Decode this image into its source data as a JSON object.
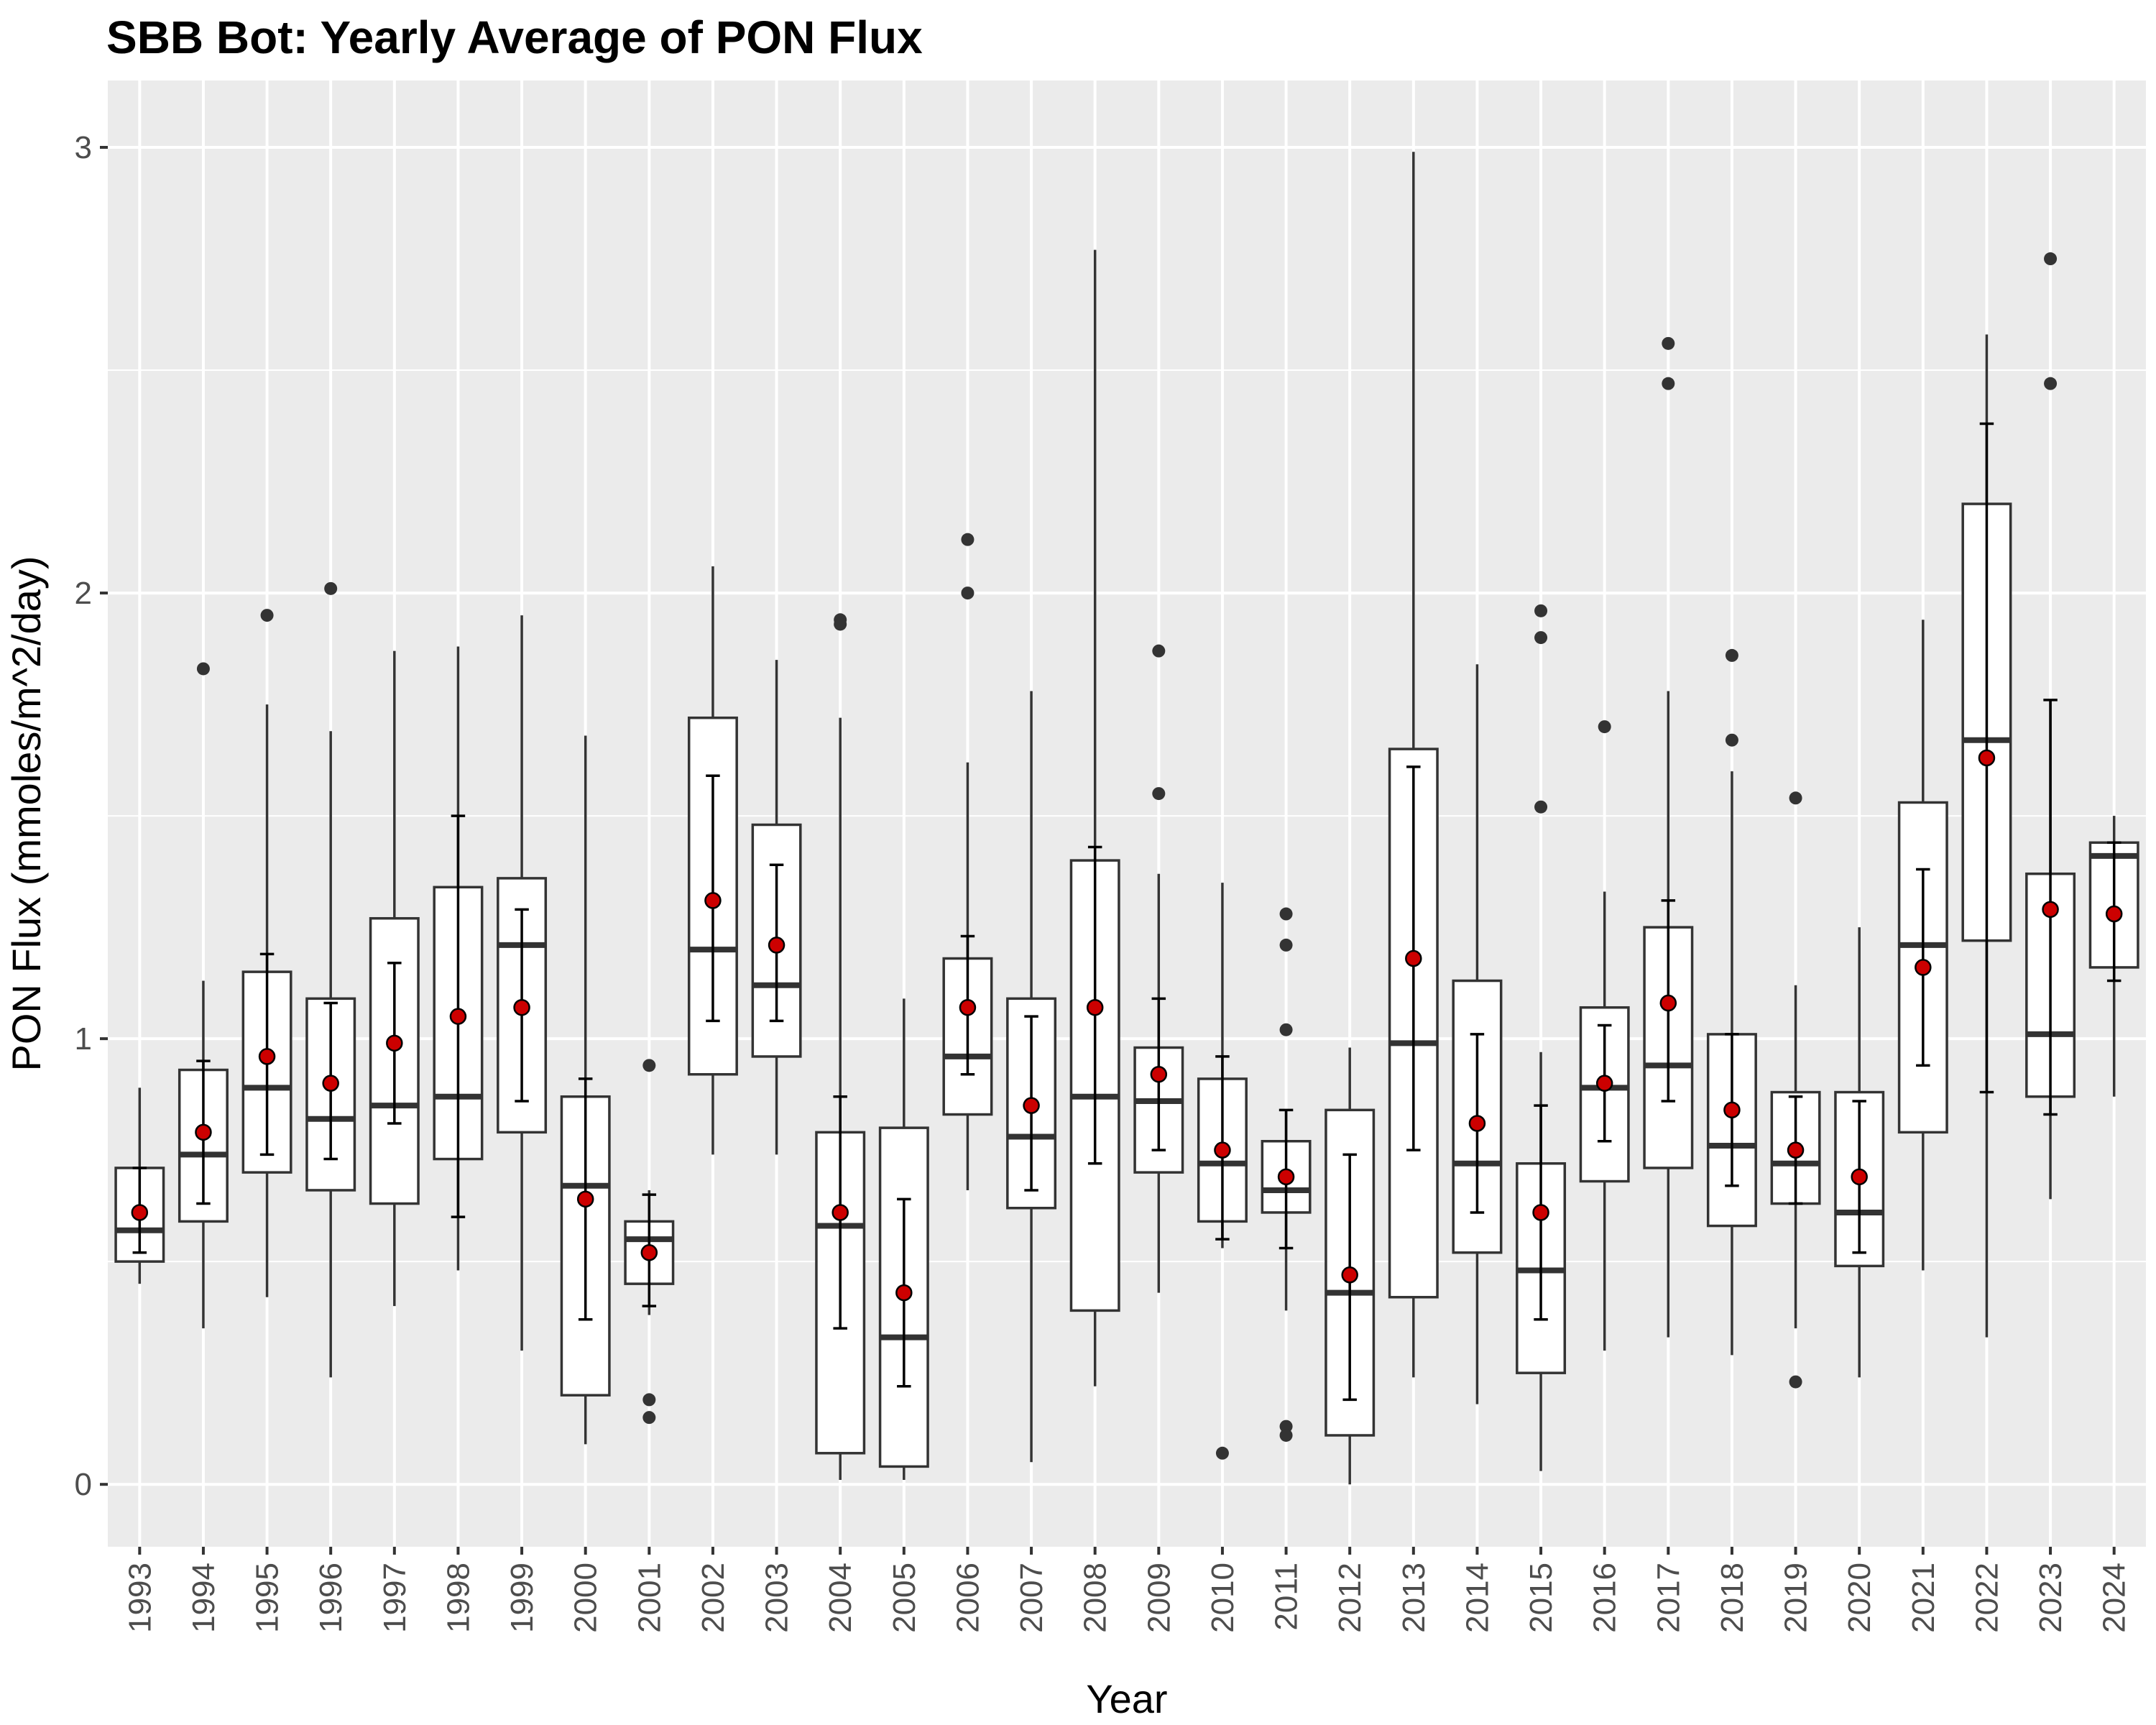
{
  "chart_data": {
    "type": "boxplot",
    "title": "SBB Bot: Yearly Average of PON Flux",
    "xlabel": "Year",
    "ylabel": "PON Flux (mmoles/m^2/day)",
    "ylim": [
      -0.14,
      3.15
    ],
    "yticks": [
      0,
      1,
      2,
      3
    ],
    "grid": true,
    "colors": {
      "panel": "#ebebeb",
      "grid": "#ffffff",
      "box_fill": "#ffffff",
      "box_line": "#333333",
      "mean_point": "#cc0000",
      "outlier": "#333333",
      "text": "#000000",
      "tick_text": "#4d4d4d"
    },
    "categories": [
      "1993",
      "1994",
      "1995",
      "1996",
      "1997",
      "1998",
      "1999",
      "2000",
      "2001",
      "2002",
      "2003",
      "2004",
      "2005",
      "2006",
      "2007",
      "2008",
      "2009",
      "2010",
      "2011",
      "2012",
      "2013",
      "2014",
      "2015",
      "2016",
      "2017",
      "2018",
      "2019",
      "2020",
      "2021",
      "2022",
      "2023",
      "2024"
    ],
    "boxes": [
      {
        "year": "1993",
        "q1": 0.5,
        "median": 0.57,
        "q3": 0.71,
        "whisker_low": 0.45,
        "whisker_high": 0.89,
        "outliers": [],
        "mean": 0.61,
        "mean_err": [
          0.52,
          0.71
        ]
      },
      {
        "year": "1994",
        "q1": 0.59,
        "median": 0.74,
        "q3": 0.93,
        "whisker_low": 0.35,
        "whisker_high": 1.13,
        "outliers": [
          1.83
        ],
        "mean": 0.79,
        "mean_err": [
          0.63,
          0.95
        ]
      },
      {
        "year": "1995",
        "q1": 0.7,
        "median": 0.89,
        "q3": 1.15,
        "whisker_low": 0.42,
        "whisker_high": 1.75,
        "outliers": [
          1.95
        ],
        "mean": 0.96,
        "mean_err": [
          0.74,
          1.19
        ]
      },
      {
        "year": "1996",
        "q1": 0.66,
        "median": 0.82,
        "q3": 1.09,
        "whisker_low": 0.24,
        "whisker_high": 1.69,
        "outliers": [
          2.01
        ],
        "mean": 0.9,
        "mean_err": [
          0.73,
          1.08
        ]
      },
      {
        "year": "1997",
        "q1": 0.63,
        "median": 0.85,
        "q3": 1.27,
        "whisker_low": 0.4,
        "whisker_high": 1.87,
        "outliers": [],
        "mean": 0.99,
        "mean_err": [
          0.81,
          1.17
        ]
      },
      {
        "year": "1998",
        "q1": 0.73,
        "median": 0.87,
        "q3": 1.34,
        "whisker_low": 0.48,
        "whisker_high": 1.88,
        "outliers": [],
        "mean": 1.05,
        "mean_err": [
          0.6,
          1.5
        ]
      },
      {
        "year": "1999",
        "q1": 0.79,
        "median": 1.21,
        "q3": 1.36,
        "whisker_low": 0.3,
        "whisker_high": 1.95,
        "outliers": [],
        "mean": 1.07,
        "mean_err": [
          0.86,
          1.29
        ]
      },
      {
        "year": "2000",
        "q1": 0.2,
        "median": 0.67,
        "q3": 0.87,
        "whisker_low": 0.09,
        "whisker_high": 1.68,
        "outliers": [],
        "mean": 0.64,
        "mean_err": [
          0.37,
          0.91
        ]
      },
      {
        "year": "2001",
        "q1": 0.45,
        "median": 0.55,
        "q3": 0.59,
        "whisker_low": 0.38,
        "whisker_high": 0.66,
        "outliers": [
          0.94,
          0.19,
          0.15
        ],
        "mean": 0.52,
        "mean_err": [
          0.4,
          0.65
        ]
      },
      {
        "year": "2002",
        "q1": 0.92,
        "median": 1.2,
        "q3": 1.72,
        "whisker_low": 0.74,
        "whisker_high": 2.06,
        "outliers": [],
        "mean": 1.31,
        "mean_err": [
          1.04,
          1.59
        ]
      },
      {
        "year": "2003",
        "q1": 0.96,
        "median": 1.12,
        "q3": 1.48,
        "whisker_low": 0.74,
        "whisker_high": 1.85,
        "outliers": [],
        "mean": 1.21,
        "mean_err": [
          1.04,
          1.39
        ]
      },
      {
        "year": "2004",
        "q1": 0.07,
        "median": 0.58,
        "q3": 0.79,
        "whisker_low": 0.01,
        "whisker_high": 1.72,
        "outliers": [
          1.94,
          1.93
        ],
        "mean": 0.61,
        "mean_err": [
          0.35,
          0.87
        ]
      },
      {
        "year": "2005",
        "q1": 0.04,
        "median": 0.33,
        "q3": 0.8,
        "whisker_low": 0.01,
        "whisker_high": 1.09,
        "outliers": [],
        "mean": 0.43,
        "mean_err": [
          0.22,
          0.64
        ]
      },
      {
        "year": "2006",
        "q1": 0.83,
        "median": 0.96,
        "q3": 1.18,
        "whisker_low": 0.66,
        "whisker_high": 1.62,
        "outliers": [
          2.12,
          2.0
        ],
        "mean": 1.07,
        "mean_err": [
          0.92,
          1.23
        ]
      },
      {
        "year": "2007",
        "q1": 0.62,
        "median": 0.78,
        "q3": 1.09,
        "whisker_low": 0.05,
        "whisker_high": 1.78,
        "outliers": [],
        "mean": 0.85,
        "mean_err": [
          0.66,
          1.05
        ]
      },
      {
        "year": "2008",
        "q1": 0.39,
        "median": 0.87,
        "q3": 1.4,
        "whisker_low": 0.22,
        "whisker_high": 2.77,
        "outliers": [],
        "mean": 1.07,
        "mean_err": [
          0.72,
          1.43
        ]
      },
      {
        "year": "2009",
        "q1": 0.7,
        "median": 0.86,
        "q3": 0.98,
        "whisker_low": 0.43,
        "whisker_high": 1.37,
        "outliers": [
          1.87,
          1.55
        ],
        "mean": 0.92,
        "mean_err": [
          0.75,
          1.09
        ]
      },
      {
        "year": "2010",
        "q1": 0.59,
        "median": 0.72,
        "q3": 0.91,
        "whisker_low": 0.53,
        "whisker_high": 1.35,
        "outliers": [
          0.07
        ],
        "mean": 0.75,
        "mean_err": [
          0.55,
          0.96
        ]
      },
      {
        "year": "2011",
        "q1": 0.61,
        "median": 0.66,
        "q3": 0.77,
        "whisker_low": 0.39,
        "whisker_high": 0.84,
        "outliers": [
          1.28,
          1.21,
          1.02,
          0.13,
          0.11
        ],
        "mean": 0.69,
        "mean_err": [
          0.53,
          0.84
        ]
      },
      {
        "year": "2012",
        "q1": 0.11,
        "median": 0.43,
        "q3": 0.84,
        "whisker_low": 0.0,
        "whisker_high": 0.98,
        "outliers": [],
        "mean": 0.47,
        "mean_err": [
          0.19,
          0.74
        ]
      },
      {
        "year": "2013",
        "q1": 0.42,
        "median": 0.99,
        "q3": 1.65,
        "whisker_low": 0.24,
        "whisker_high": 2.99,
        "outliers": [],
        "mean": 1.18,
        "mean_err": [
          0.75,
          1.61
        ]
      },
      {
        "year": "2014",
        "q1": 0.52,
        "median": 0.72,
        "q3": 1.13,
        "whisker_low": 0.18,
        "whisker_high": 1.84,
        "outliers": [],
        "mean": 0.81,
        "mean_err": [
          0.61,
          1.01
        ]
      },
      {
        "year": "2015",
        "q1": 0.25,
        "median": 0.48,
        "q3": 0.72,
        "whisker_low": 0.03,
        "whisker_high": 0.97,
        "outliers": [
          1.96,
          1.9,
          1.52
        ],
        "mean": 0.61,
        "mean_err": [
          0.37,
          0.85
        ]
      },
      {
        "year": "2016",
        "q1": 0.68,
        "median": 0.89,
        "q3": 1.07,
        "whisker_low": 0.3,
        "whisker_high": 1.33,
        "outliers": [
          1.7
        ],
        "mean": 0.9,
        "mean_err": [
          0.77,
          1.03
        ]
      },
      {
        "year": "2017",
        "q1": 0.71,
        "median": 0.94,
        "q3": 1.25,
        "whisker_low": 0.33,
        "whisker_high": 1.78,
        "outliers": [
          2.56,
          2.47
        ],
        "mean": 1.08,
        "mean_err": [
          0.86,
          1.31
        ]
      },
      {
        "year": "2018",
        "q1": 0.58,
        "median": 0.76,
        "q3": 1.01,
        "whisker_low": 0.29,
        "whisker_high": 1.6,
        "outliers": [
          1.86,
          1.67
        ],
        "mean": 0.84,
        "mean_err": [
          0.67,
          1.01
        ]
      },
      {
        "year": "2019",
        "q1": 0.63,
        "median": 0.72,
        "q3": 0.88,
        "whisker_low": 0.35,
        "whisker_high": 1.12,
        "outliers": [
          1.54,
          0.23
        ],
        "mean": 0.75,
        "mean_err": [
          0.63,
          0.87
        ]
      },
      {
        "year": "2020",
        "q1": 0.49,
        "median": 0.61,
        "q3": 0.88,
        "whisker_low": 0.24,
        "whisker_high": 1.25,
        "outliers": [],
        "mean": 0.69,
        "mean_err": [
          0.52,
          0.86
        ]
      },
      {
        "year": "2021",
        "q1": 0.79,
        "median": 1.21,
        "q3": 1.53,
        "whisker_low": 0.48,
        "whisker_high": 1.94,
        "outliers": [],
        "mean": 1.16,
        "mean_err": [
          0.94,
          1.38
        ]
      },
      {
        "year": "2022",
        "q1": 1.22,
        "median": 1.67,
        "q3": 2.2,
        "whisker_low": 0.33,
        "whisker_high": 2.58,
        "outliers": [],
        "mean": 1.63,
        "mean_err": [
          0.88,
          2.38
        ]
      },
      {
        "year": "2023",
        "q1": 0.87,
        "median": 1.01,
        "q3": 1.37,
        "whisker_low": 0.64,
        "whisker_high": 1.76,
        "outliers": [
          2.75,
          2.47
        ],
        "mean": 1.29,
        "mean_err": [
          0.83,
          1.76
        ]
      },
      {
        "year": "2024",
        "q1": 1.16,
        "median": 1.41,
        "q3": 1.44,
        "whisker_low": 0.87,
        "whisker_high": 1.5,
        "outliers": [],
        "mean": 1.28,
        "mean_err": [
          1.13,
          1.44
        ]
      }
    ]
  }
}
